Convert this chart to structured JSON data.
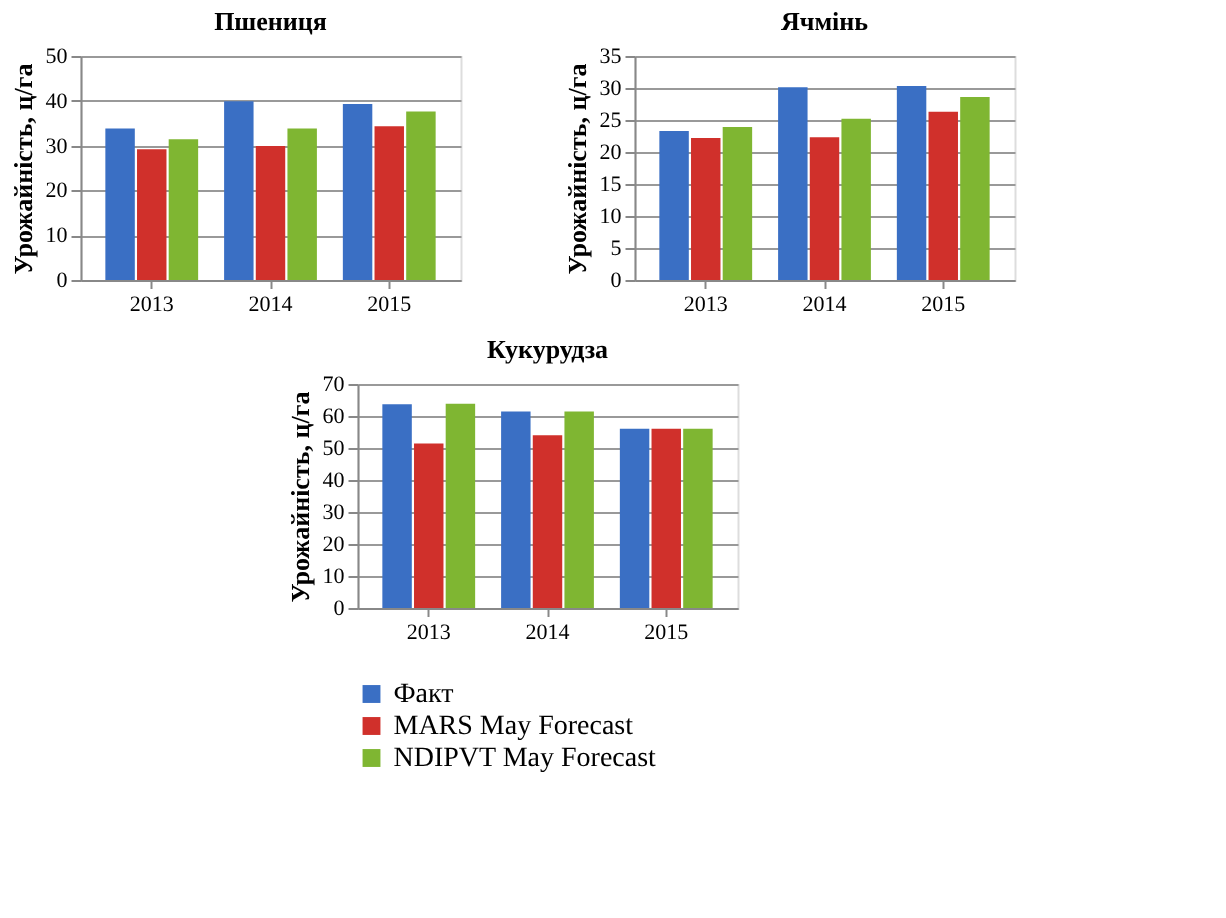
{
  "chart_data": [
    {
      "type": "bar",
      "title": "Пшениця",
      "ylabel": "Урожайність, ц/га",
      "categories": [
        "2013",
        "2014",
        "2015"
      ],
      "ylim": [
        0,
        50
      ],
      "yticks": [
        0,
        10,
        20,
        30,
        40,
        50
      ],
      "grid": "y",
      "series": [
        {
          "color": "#3a6fc4",
          "values": [
            33.8,
            39.9,
            39.3
          ]
        },
        {
          "color": "#d0302b",
          "values": [
            29.2,
            29.9,
            34.3
          ]
        },
        {
          "color": "#7fb632",
          "values": [
            31.4,
            33.8,
            37.6
          ]
        }
      ]
    },
    {
      "type": "bar",
      "title": "Ячмінь",
      "ylabel": "Урожайність, ц/га",
      "categories": [
        "2013",
        "2014",
        "2015"
      ],
      "ylim": [
        0,
        35
      ],
      "yticks": [
        0,
        5,
        10,
        15,
        20,
        25,
        30,
        35
      ],
      "grid": "y",
      "series": [
        {
          "color": "#3a6fc4",
          "values": [
            23.3,
            30.1,
            30.3
          ]
        },
        {
          "color": "#d0302b",
          "values": [
            22.2,
            22.3,
            26.3
          ]
        },
        {
          "color": "#7fb632",
          "values": [
            23.9,
            25.2,
            28.6
          ]
        }
      ]
    },
    {
      "type": "bar",
      "title": "Кукурудза",
      "ylabel": "Урожайність, ц/га",
      "categories": [
        "2013",
        "2014",
        "2015"
      ],
      "ylim": [
        0,
        70
      ],
      "yticks": [
        0,
        10,
        20,
        30,
        40,
        50,
        60,
        70
      ],
      "grid": "y",
      "legend": "bottom",
      "series": [
        {
          "name": "Факт",
          "color": "#3a6fc4",
          "values": [
            63.7,
            61.4,
            56.0
          ]
        },
        {
          "name": "MARS May Forecast",
          "color": "#d0302b",
          "values": [
            51.4,
            54.0,
            56.0
          ]
        },
        {
          "name": "NDIPVT May Forecast",
          "color": "#7fb632",
          "values": [
            63.8,
            61.4,
            56.0
          ]
        }
      ]
    }
  ]
}
